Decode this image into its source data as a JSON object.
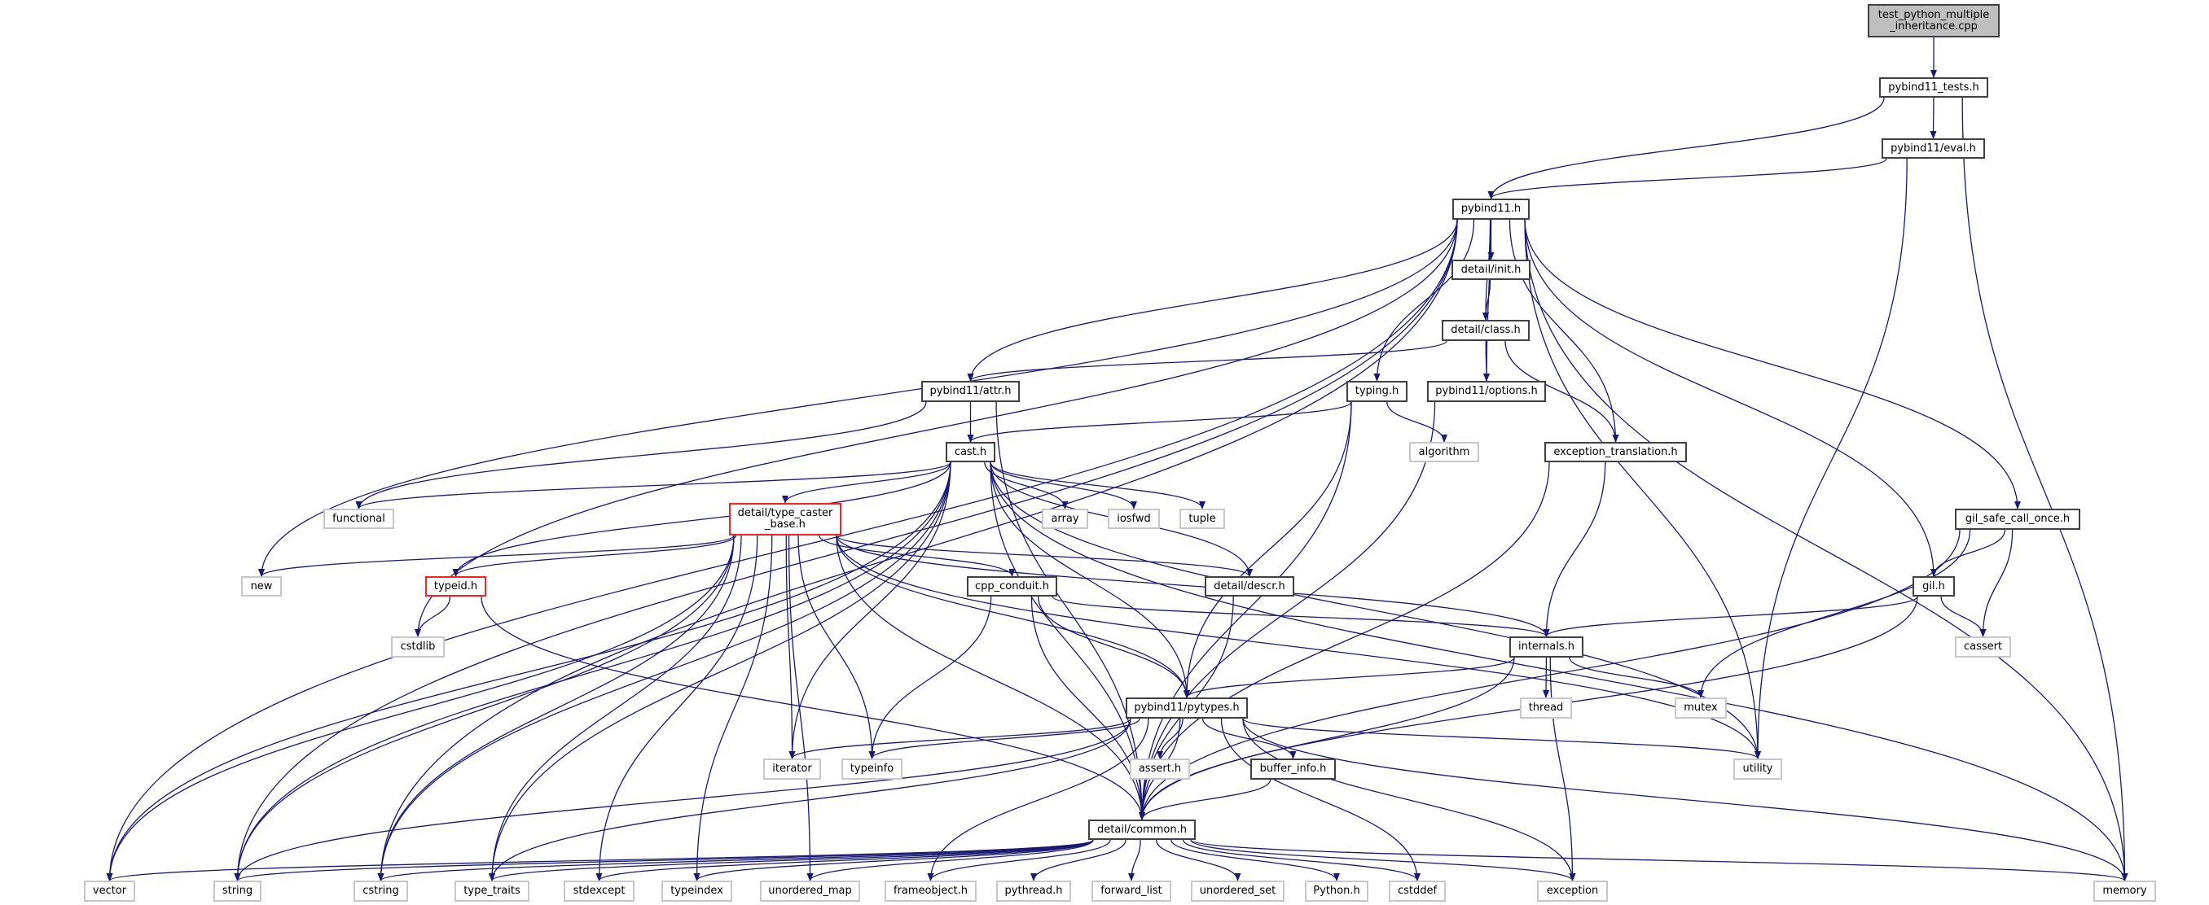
{
  "colors": {
    "edge": "#191970",
    "documented_border": "#404040",
    "external_border": "#c8c8c8",
    "incomplete_border": "#ff2020",
    "root_fill": "#bfbfbf"
  },
  "nodes": {
    "title": {
      "label": "test_python_multiple\n_inheritance.cpp",
      "kind": "root"
    },
    "tests": {
      "label": "pybind11_tests.h",
      "kind": "doc"
    },
    "eval": {
      "label": "pybind11/eval.h",
      "kind": "doc"
    },
    "pybind11": {
      "label": "pybind11.h",
      "kind": "doc"
    },
    "init": {
      "label": "detail/init.h",
      "kind": "doc"
    },
    "class": {
      "label": "detail/class.h",
      "kind": "doc"
    },
    "attr": {
      "label": "pybind11/attr.h",
      "kind": "doc"
    },
    "typing": {
      "label": "typing.h",
      "kind": "doc"
    },
    "options": {
      "label": "pybind11/options.h",
      "kind": "doc"
    },
    "cast": {
      "label": "cast.h",
      "kind": "doc"
    },
    "algorithm": {
      "label": "algorithm",
      "kind": "ext"
    },
    "exc_trans": {
      "label": "exception_translation.h",
      "kind": "doc"
    },
    "functional": {
      "label": "functional",
      "kind": "ext"
    },
    "tcb": {
      "label": "detail/type_caster\n_base.h",
      "kind": "red"
    },
    "array": {
      "label": "array",
      "kind": "ext"
    },
    "iosfwd": {
      "label": "iosfwd",
      "kind": "ext"
    },
    "tuple": {
      "label": "tuple",
      "kind": "ext"
    },
    "gsco": {
      "label": "gil_safe_call_once.h",
      "kind": "doc"
    },
    "new": {
      "label": "new",
      "kind": "ext"
    },
    "typeid": {
      "label": "typeid.h",
      "kind": "red"
    },
    "cpp_conduit": {
      "label": "cpp_conduit.h",
      "kind": "doc"
    },
    "descr": {
      "label": "detail/descr.h",
      "kind": "doc"
    },
    "gil": {
      "label": "gil.h",
      "kind": "doc"
    },
    "cstdlib": {
      "label": "cstdlib",
      "kind": "ext"
    },
    "internals": {
      "label": "internals.h",
      "kind": "doc"
    },
    "cassert": {
      "label": "cassert",
      "kind": "ext"
    },
    "pytypes": {
      "label": "pybind11/pytypes.h",
      "kind": "doc"
    },
    "thread": {
      "label": "thread",
      "kind": "ext"
    },
    "mutex": {
      "label": "mutex",
      "kind": "ext"
    },
    "iterator": {
      "label": "iterator",
      "kind": "ext"
    },
    "typeinfo": {
      "label": "typeinfo",
      "kind": "ext"
    },
    "assert": {
      "label": "assert.h",
      "kind": "ext"
    },
    "buffer_info": {
      "label": "buffer_info.h",
      "kind": "doc"
    },
    "utility": {
      "label": "utility",
      "kind": "ext"
    },
    "common": {
      "label": "detail/common.h",
      "kind": "doc"
    },
    "vector": {
      "label": "vector",
      "kind": "ext"
    },
    "string": {
      "label": "string",
      "kind": "ext"
    },
    "cstring": {
      "label": "cstring",
      "kind": "ext"
    },
    "type_traits": {
      "label": "type_traits",
      "kind": "ext"
    },
    "stdexcept": {
      "label": "stdexcept",
      "kind": "ext"
    },
    "typeindex": {
      "label": "typeindex",
      "kind": "ext"
    },
    "unordered_map": {
      "label": "unordered_map",
      "kind": "ext"
    },
    "frameobject": {
      "label": "frameobject.h",
      "kind": "ext"
    },
    "pythread": {
      "label": "pythread.h",
      "kind": "ext"
    },
    "forward_list": {
      "label": "forward_list",
      "kind": "ext"
    },
    "unordered_set": {
      "label": "unordered_set",
      "kind": "ext"
    },
    "python": {
      "label": "Python.h",
      "kind": "ext"
    },
    "cstddef": {
      "label": "cstddef",
      "kind": "ext"
    },
    "exception": {
      "label": "exception",
      "kind": "ext"
    },
    "memory": {
      "label": "memory",
      "kind": "ext"
    }
  },
  "edges": [
    [
      "title",
      "tests"
    ],
    [
      "tests",
      "pybind11"
    ],
    [
      "tests",
      "eval"
    ],
    [
      "tests",
      "memory"
    ],
    [
      "eval",
      "pybind11"
    ],
    [
      "eval",
      "utility"
    ],
    [
      "pybind11",
      "init"
    ],
    [
      "pybind11",
      "class"
    ],
    [
      "pybind11",
      "attr"
    ],
    [
      "pybind11",
      "typing"
    ],
    [
      "pybind11",
      "options"
    ],
    [
      "pybind11",
      "exc_trans"
    ],
    [
      "pybind11",
      "gil"
    ],
    [
      "pybind11",
      "gsco"
    ],
    [
      "pybind11",
      "memory"
    ],
    [
      "pybind11",
      "utility"
    ],
    [
      "pybind11",
      "new"
    ],
    [
      "pybind11",
      "cstdlib"
    ],
    [
      "pybind11",
      "cstring"
    ],
    [
      "pybind11",
      "string"
    ],
    [
      "pybind11",
      "vector"
    ],
    [
      "init",
      "class"
    ],
    [
      "class",
      "attr"
    ],
    [
      "class",
      "options"
    ],
    [
      "class",
      "exc_trans"
    ],
    [
      "attr",
      "cast"
    ],
    [
      "attr",
      "functional"
    ],
    [
      "attr",
      "common"
    ],
    [
      "typing",
      "cast"
    ],
    [
      "typing",
      "algorithm"
    ],
    [
      "typing",
      "pytypes"
    ],
    [
      "typing",
      "common"
    ],
    [
      "options",
      "common"
    ],
    [
      "exc_trans",
      "internals"
    ],
    [
      "exc_trans",
      "common"
    ],
    [
      "cast",
      "tcb"
    ],
    [
      "cast",
      "array"
    ],
    [
      "cast",
      "iosfwd"
    ],
    [
      "cast",
      "tuple"
    ],
    [
      "cast",
      "functional"
    ],
    [
      "cast",
      "typeid"
    ],
    [
      "cast",
      "descr"
    ],
    [
      "cast",
      "pytypes"
    ],
    [
      "cast",
      "common"
    ],
    [
      "cast",
      "iterator"
    ],
    [
      "cast",
      "utility"
    ],
    [
      "cast",
      "memory"
    ],
    [
      "cast",
      "vector"
    ],
    [
      "cast",
      "string"
    ],
    [
      "cast",
      "cstring"
    ],
    [
      "cast",
      "type_traits"
    ],
    [
      "tcb",
      "new"
    ],
    [
      "tcb",
      "typeid"
    ],
    [
      "tcb",
      "cpp_conduit"
    ],
    [
      "tcb",
      "descr"
    ],
    [
      "tcb",
      "internals"
    ],
    [
      "tcb",
      "pytypes"
    ],
    [
      "tcb",
      "common"
    ],
    [
      "tcb",
      "utility"
    ],
    [
      "tcb",
      "iterator"
    ],
    [
      "tcb",
      "typeinfo"
    ],
    [
      "tcb",
      "vector"
    ],
    [
      "tcb",
      "string"
    ],
    [
      "tcb",
      "cstring"
    ],
    [
      "tcb",
      "type_traits"
    ],
    [
      "tcb",
      "stdexcept"
    ],
    [
      "tcb",
      "typeindex"
    ],
    [
      "tcb",
      "unordered_map"
    ],
    [
      "typeid",
      "cstdlib"
    ],
    [
      "typeid",
      "common"
    ],
    [
      "cpp_conduit",
      "internals"
    ],
    [
      "cpp_conduit",
      "pytypes"
    ],
    [
      "cpp_conduit",
      "typeinfo"
    ],
    [
      "cpp_conduit",
      "common"
    ],
    [
      "descr",
      "common"
    ],
    [
      "gsco",
      "gil"
    ],
    [
      "gsco",
      "cassert"
    ],
    [
      "gsco",
      "mutex"
    ],
    [
      "gsco",
      "common"
    ],
    [
      "gil",
      "internals"
    ],
    [
      "gil",
      "cassert"
    ],
    [
      "gil",
      "common"
    ],
    [
      "internals",
      "pytypes"
    ],
    [
      "internals",
      "thread"
    ],
    [
      "internals",
      "mutex"
    ],
    [
      "internals",
      "exception"
    ],
    [
      "internals",
      "common"
    ],
    [
      "pytypes",
      "iterator"
    ],
    [
      "pytypes",
      "typeinfo"
    ],
    [
      "pytypes",
      "assert"
    ],
    [
      "pytypes",
      "buffer_info"
    ],
    [
      "pytypes",
      "common"
    ],
    [
      "pytypes",
      "utility"
    ],
    [
      "pytypes",
      "memory"
    ],
    [
      "pytypes",
      "exception"
    ],
    [
      "pytypes",
      "cstddef"
    ],
    [
      "pytypes",
      "frameobject"
    ],
    [
      "pytypes",
      "string"
    ],
    [
      "pytypes",
      "type_traits"
    ],
    [
      "buffer_info",
      "common"
    ],
    [
      "common",
      "vector"
    ],
    [
      "common",
      "string"
    ],
    [
      "common",
      "cstring"
    ],
    [
      "common",
      "type_traits"
    ],
    [
      "common",
      "stdexcept"
    ],
    [
      "common",
      "typeindex"
    ],
    [
      "common",
      "unordered_map"
    ],
    [
      "common",
      "frameobject"
    ],
    [
      "common",
      "pythread"
    ],
    [
      "common",
      "forward_list"
    ],
    [
      "common",
      "unordered_set"
    ],
    [
      "common",
      "python"
    ],
    [
      "common",
      "cstddef"
    ],
    [
      "common",
      "exception"
    ],
    [
      "common",
      "memory"
    ]
  ]
}
